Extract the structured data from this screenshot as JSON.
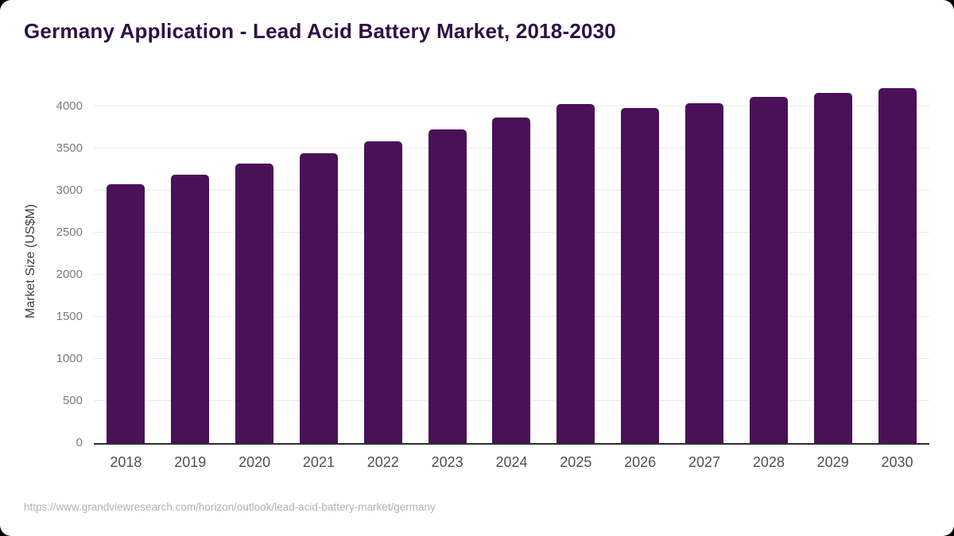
{
  "page": {
    "title": "Germany Application - Lead Acid Battery Market, 2018-2030",
    "footer": {
      "source_url": "https://www.grandviewresearch.com/horizon/outlook/lead-acid-battery-market/germany"
    }
  },
  "colors": {
    "bar": "#4a1158",
    "title": "#2f1045",
    "gridline": "#ebebeb",
    "axis_baseline": "#2e2e2e",
    "y_tick_text": "#7b7b7b",
    "x_tick_text": "#4f4f4f",
    "source_text": "#b1b1b1",
    "card_background": "#ffffff",
    "outer_background": "#000000"
  },
  "chart_data": {
    "type": "bar",
    "title": "Germany Application - Lead Acid Battery Market, 2018-2030",
    "categories": [
      "2018",
      "2019",
      "2020",
      "2021",
      "2022",
      "2023",
      "2024",
      "2025",
      "2026",
      "2027",
      "2028",
      "2029",
      "2030"
    ],
    "values": [
      3075,
      3190,
      3320,
      3445,
      3580,
      3730,
      3870,
      4030,
      3980,
      4040,
      4110,
      4160,
      4215
    ],
    "xlabel": "",
    "ylabel": "Market Size (US$M)",
    "yticks": [
      0,
      500,
      1000,
      1500,
      2000,
      2500,
      3000,
      3500,
      4000
    ],
    "ylim": [
      0,
      4320
    ],
    "grid": true,
    "legend": "none",
    "source": "https://www.grandviewresearch.com/horizon/outlook/lead-acid-battery-market/germany"
  }
}
